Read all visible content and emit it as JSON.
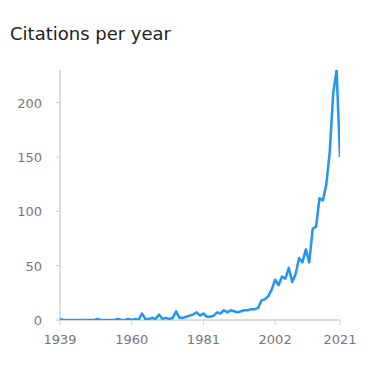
{
  "chart_data": {
    "type": "line",
    "title": "Citations per year",
    "x": [
      1939,
      1940,
      1941,
      1942,
      1943,
      1944,
      1945,
      1946,
      1947,
      1948,
      1949,
      1950,
      1951,
      1952,
      1953,
      1954,
      1955,
      1956,
      1957,
      1958,
      1959,
      1960,
      1961,
      1962,
      1963,
      1964,
      1965,
      1966,
      1967,
      1968,
      1969,
      1970,
      1971,
      1972,
      1973,
      1974,
      1975,
      1976,
      1977,
      1978,
      1979,
      1980,
      1981,
      1982,
      1983,
      1984,
      1985,
      1986,
      1987,
      1988,
      1989,
      1990,
      1991,
      1992,
      1993,
      1994,
      1995,
      1996,
      1997,
      1998,
      1999,
      2000,
      2001,
      2002,
      2003,
      2004,
      2005,
      2006,
      2007,
      2008,
      2009,
      2010,
      2011,
      2012,
      2013,
      2014,
      2015,
      2016,
      2017,
      2018,
      2019,
      2020,
      2021
    ],
    "values": [
      1,
      0,
      0,
      0,
      0,
      0,
      0,
      0,
      0,
      0,
      0,
      1,
      0,
      0,
      0,
      0,
      0,
      1,
      0,
      0,
      1,
      0,
      1,
      0,
      6,
      1,
      1,
      2,
      1,
      5,
      1,
      2,
      1,
      2,
      8,
      2,
      2,
      3,
      4,
      5,
      7,
      4,
      6,
      3,
      3,
      4,
      7,
      6,
      9,
      7,
      9,
      8,
      7,
      8,
      9,
      9,
      10,
      10,
      11,
      18,
      19,
      22,
      28,
      37,
      32,
      40,
      38,
      48,
      35,
      42,
      57,
      53,
      65,
      53,
      84,
      86,
      112,
      110,
      125,
      155,
      208,
      230,
      150
    ],
    "color": "#2196f3",
    "xlim": [
      1939,
      2021
    ],
    "xticks": [
      1939,
      1960,
      1981,
      2002,
      2021
    ],
    "ylim": [
      0,
      230
    ],
    "yticks": [
      0,
      50,
      100,
      150,
      200
    ],
    "grid": false
  }
}
